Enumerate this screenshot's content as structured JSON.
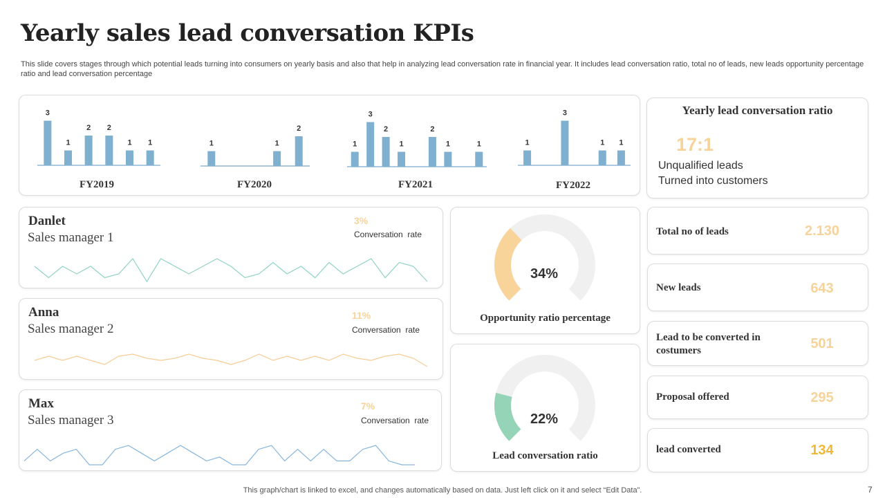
{
  "title": "Yearly sales lead conversation KPIs",
  "subtitle": "This slide covers stages through which potential leads turning into consumers on yearly basis and also that help in analyzing lead conversation rate in financial year. It includes lead conversation ratio, total no of leads, new leads opportunity percentage ratio and lead conversation percentage",
  "colors": {
    "bar": "#7fb0cf",
    "accent": "#f6d39a",
    "gauge_track": "#f0f0f0",
    "gauge_orange": "#f8d49b",
    "gauge_green": "#96d4b8",
    "line_green": "#8fd3c4",
    "line_orange": "#f6cc95",
    "line_blue": "#86b5dd",
    "baseline": "#8fb9d8"
  },
  "chart_data": [
    {
      "type": "bar",
      "title": "FY2019",
      "values": [
        3,
        1,
        2,
        2,
        1,
        1
      ]
    },
    {
      "type": "bar",
      "title": "FY2020",
      "values": [
        1,
        0,
        0,
        1,
        2
      ]
    },
    {
      "type": "bar",
      "title": "FY2021",
      "values": [
        1,
        3,
        2,
        1,
        0,
        2,
        1,
        0,
        1
      ]
    },
    {
      "type": "bar",
      "title": "FY2022",
      "values": [
        1,
        0,
        3,
        0,
        1,
        1
      ]
    }
  ],
  "ratio": {
    "title": "Yearly lead conversation ratio",
    "value": "17:1",
    "line1": "Unqualified leads",
    "line2": "Turned into customers"
  },
  "managers": [
    {
      "name": "Danlet",
      "role": "Sales manager 1",
      "rate": "3%",
      "rate_label": "Conversation  rate",
      "trend": [
        5,
        2,
        5,
        3,
        5,
        2,
        3,
        7,
        1,
        7,
        5,
        3,
        5,
        7,
        5,
        2,
        3,
        6,
        3,
        5,
        2,
        6,
        3,
        5,
        7,
        2,
        6,
        5,
        1
      ]
    },
    {
      "name": "Anna",
      "role": "Sales manager 2",
      "rate": "11%",
      "rate_label": "Conversation  rate",
      "trend": [
        4,
        6,
        4,
        6,
        4,
        2,
        6,
        7,
        5,
        4,
        5,
        7,
        5,
        4,
        2,
        4,
        7,
        4,
        6,
        4,
        6,
        4,
        7,
        5,
        4,
        6,
        7,
        5,
        1
      ]
    },
    {
      "name": "Max",
      "role": "Sales manager 3",
      "rate": "7%",
      "rate_label": "Conversation  rate",
      "trend": [
        2,
        5,
        2,
        4,
        5,
        1,
        1,
        5,
        6,
        4,
        2,
        4,
        6,
        4,
        2,
        3,
        1,
        1,
        5,
        6,
        2,
        5,
        2,
        5,
        2,
        2,
        5,
        6,
        2,
        1,
        1
      ]
    }
  ],
  "gauges": [
    {
      "value": 34,
      "display": "34%",
      "label": "Opportunity ratio percentage"
    },
    {
      "value": 22,
      "display": "22%",
      "label": "Lead conversation ratio"
    }
  ],
  "stats": [
    {
      "label": "Total no of leads",
      "value": "2.130"
    },
    {
      "label": "New leads",
      "value": "643"
    },
    {
      "label": "Lead to be converted in costumers",
      "value": "501"
    },
    {
      "label": "Proposal offered",
      "value": "295"
    },
    {
      "label": "lead converted",
      "value": "134"
    }
  ],
  "footer": "This graph/chart is linked to excel,  and changes automatically based on data. Just left click on it and select “Edit Data”.",
  "page_number": "7"
}
